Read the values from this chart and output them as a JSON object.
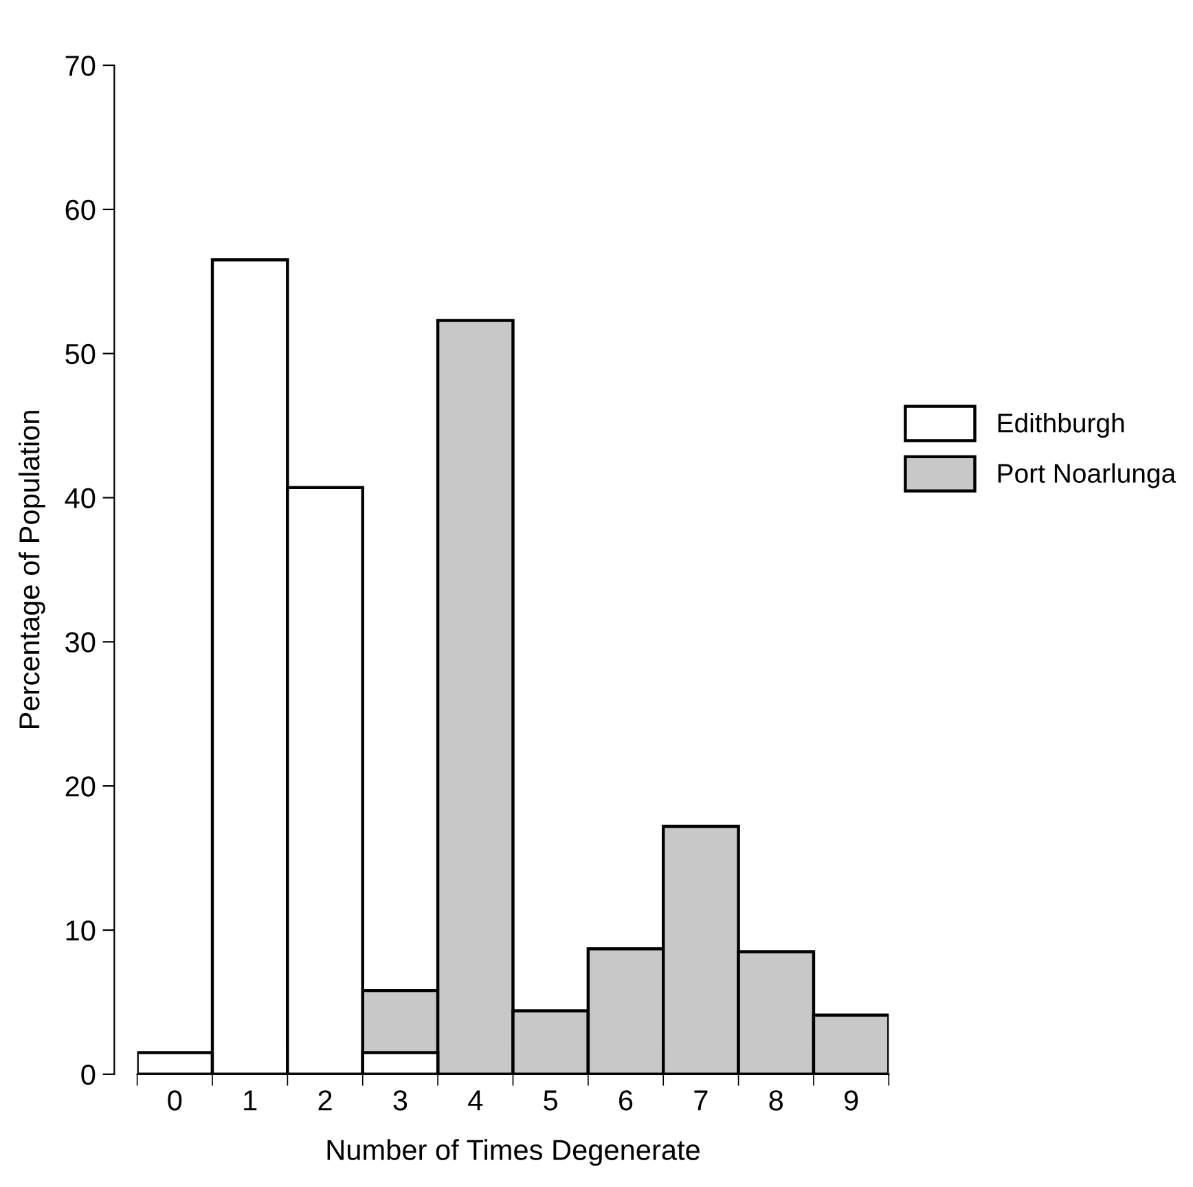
{
  "chart_data": {
    "type": "bar",
    "xlabel": "Number of Times Degenerate",
    "ylabel": "Percentage of Population",
    "categories": [
      "0",
      "1",
      "2",
      "3",
      "4",
      "5",
      "6",
      "7",
      "8",
      "9"
    ],
    "series": [
      {
        "name": "Edithburgh",
        "color": "#ffffff",
        "values": [
          1.5,
          56.5,
          40.7,
          1.5,
          null,
          null,
          null,
          null,
          null,
          null
        ]
      },
      {
        "name": "Port Noarlunga",
        "color": "#c8c8c8",
        "values": [
          null,
          null,
          null,
          5.8,
          52.3,
          4.4,
          8.7,
          17.2,
          8.5,
          4.1
        ]
      }
    ],
    "ylim": [
      0,
      70
    ],
    "yticks": [
      0,
      10,
      20,
      30,
      40,
      50,
      60,
      70
    ],
    "grid": false,
    "legend": "right"
  }
}
